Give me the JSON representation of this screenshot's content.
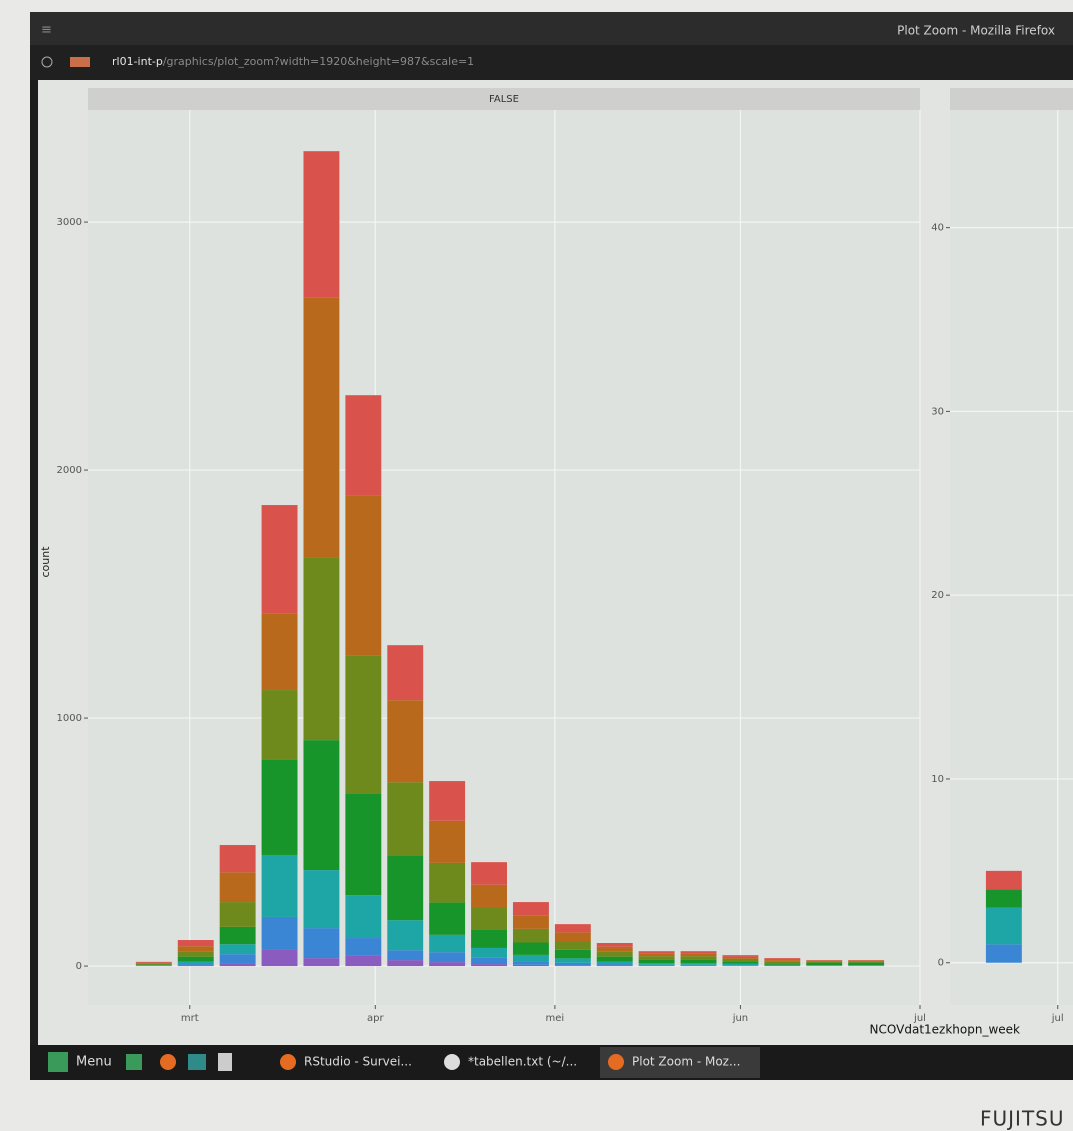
{
  "window": {
    "title": "Plot Zoom - Mozilla Firefox",
    "url_host": "rl01-int-p",
    "url_path": "/graphics/plot_zoom?width=1920&height=987&scale=1"
  },
  "chart_data": [
    {
      "type": "bar",
      "stacked": true,
      "facet": "FALSE",
      "y_label": "count",
      "x_label": "NCOVdat1ezkhopn_week",
      "grid": true,
      "x": [
        55,
        62,
        69,
        76,
        83,
        90,
        97,
        104,
        111,
        118,
        125,
        132,
        139,
        146,
        153,
        160,
        167,
        174
      ],
      "xlim": [
        44,
        183
      ],
      "xticks": [
        {
          "value": 61,
          "label": "mrt"
        },
        {
          "value": 92,
          "label": "apr"
        },
        {
          "value": 122,
          "label": "mei"
        },
        {
          "value": 153,
          "label": "jun"
        },
        {
          "value": 183,
          "label": "jul"
        }
      ],
      "ylim": [
        -157,
        3452
      ],
      "yticks": [
        0,
        1000,
        2000,
        3000
      ],
      "series": [
        {
          "color": "#8a5cc0",
          "values": [
            0,
            2,
            12,
            65,
            32,
            44,
            24,
            16,
            8,
            5,
            3,
            2,
            1,
            1,
            1,
            0,
            0,
            0
          ]
        },
        {
          "color": "#3b86d4",
          "values": [
            1,
            6,
            36,
            133,
            121,
            69,
            40,
            40,
            25,
            15,
            10,
            6,
            4,
            4,
            3,
            2,
            1,
            1
          ]
        },
        {
          "color": "#1ea6a6",
          "values": [
            2,
            10,
            40,
            250,
            234,
            173,
            121,
            70,
            40,
            25,
            18,
            10,
            6,
            6,
            5,
            3,
            3,
            3
          ]
        },
        {
          "color": "#17952a",
          "values": [
            3,
            20,
            70,
            383,
            524,
            411,
            262,
            130,
            75,
            50,
            35,
            20,
            15,
            15,
            10,
            6,
            10,
            10
          ]
        },
        {
          "color": "#6f8a1c",
          "values": [
            3,
            22,
            100,
            282,
            738,
            556,
            294,
            160,
            90,
            55,
            35,
            20,
            14,
            14,
            10,
            6,
            5,
            5
          ]
        },
        {
          "color": "#b8691c",
          "values": [
            4,
            20,
            120,
            310,
            1048,
            645,
            331,
            170,
            90,
            55,
            35,
            20,
            12,
            12,
            8,
            7,
            3,
            3
          ]
        },
        {
          "color": "#d9534c",
          "values": [
            4,
            25,
            110,
            436,
            589,
            404,
            222,
            160,
            91,
            53,
            33,
            15,
            8,
            8,
            7,
            8,
            2,
            2
          ]
        }
      ]
    },
    {
      "type": "bar",
      "stacked": true,
      "grid": true,
      "x": [
        174
      ],
      "xlim": [
        165,
        304
      ],
      "xticks": [
        {
          "value": 183,
          "label": "jul"
        }
      ],
      "ylim": [
        -2.3,
        46.4
      ],
      "yticks": [
        0,
        10,
        20,
        30,
        40
      ],
      "series": [
        {
          "color": "#8a5cc0",
          "values": [
            0
          ]
        },
        {
          "color": "#3b86d4",
          "values": [
            1
          ]
        },
        {
          "color": "#1ea6a6",
          "values": [
            2
          ]
        },
        {
          "color": "#17952a",
          "values": [
            1
          ]
        },
        {
          "color": "#6f8a1c",
          "values": [
            0
          ]
        },
        {
          "color": "#b8691c",
          "values": [
            0
          ]
        },
        {
          "color": "#d9534c",
          "values": [
            1
          ]
        }
      ]
    }
  ],
  "taskbar": {
    "menu": "Menu",
    "items": [
      "RStudio - Survei...",
      "*tabellen.txt (~/...",
      "Plot Zoom - Moz..."
    ]
  },
  "brand": "FUJITSU"
}
